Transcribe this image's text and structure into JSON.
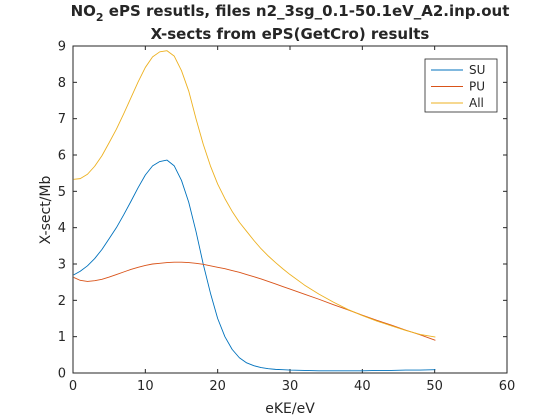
{
  "chart_data": {
    "type": "line",
    "title_main": "NO",
    "title_sub": "2",
    "title_rest": " ePS resutls, files n2_3sg_0.1-50.1eV_A2.inp.out",
    "subtitle": "X-sects from ePS(GetCro) results",
    "xlabel": "eKE/eV",
    "ylabel": "X-sect/Mb",
    "xlim": [
      0,
      60
    ],
    "ylim": [
      0,
      9
    ],
    "xticks": [
      0,
      10,
      20,
      30,
      40,
      50,
      60
    ],
    "yticks": [
      0,
      1,
      2,
      3,
      4,
      5,
      6,
      7,
      8,
      9
    ],
    "grid": false,
    "legend_position": "top-right",
    "x": [
      0.1,
      1,
      2,
      3,
      4,
      5,
      6,
      7,
      8,
      9,
      10,
      11,
      12,
      13,
      14,
      15,
      16,
      17,
      18,
      19,
      20,
      21,
      22,
      23,
      24,
      25,
      26,
      27,
      28,
      29,
      30,
      32,
      34,
      36,
      38,
      40,
      42,
      44,
      46,
      48,
      50.1
    ],
    "series": [
      {
        "name": "SU",
        "color": "#0072bd",
        "values": [
          2.7,
          2.8,
          2.95,
          3.15,
          3.4,
          3.7,
          4.0,
          4.35,
          4.72,
          5.1,
          5.45,
          5.7,
          5.82,
          5.86,
          5.7,
          5.3,
          4.7,
          3.9,
          3.0,
          2.2,
          1.5,
          1.0,
          0.65,
          0.42,
          0.28,
          0.2,
          0.15,
          0.12,
          0.1,
          0.09,
          0.08,
          0.07,
          0.06,
          0.06,
          0.06,
          0.06,
          0.07,
          0.07,
          0.08,
          0.08,
          0.09
        ]
      },
      {
        "name": "PU",
        "color": "#d95319",
        "values": [
          2.63,
          2.55,
          2.52,
          2.54,
          2.58,
          2.64,
          2.71,
          2.78,
          2.85,
          2.91,
          2.96,
          3.0,
          3.02,
          3.04,
          3.05,
          3.05,
          3.04,
          3.02,
          2.99,
          2.95,
          2.91,
          2.87,
          2.82,
          2.77,
          2.71,
          2.65,
          2.59,
          2.52,
          2.45,
          2.38,
          2.31,
          2.17,
          2.03,
          1.88,
          1.74,
          1.59,
          1.45,
          1.32,
          1.18,
          1.05,
          0.9
        ]
      },
      {
        "name": "All",
        "color": "#edb120",
        "values": [
          5.33,
          5.35,
          5.47,
          5.69,
          5.98,
          6.34,
          6.71,
          7.13,
          7.57,
          8.01,
          8.41,
          8.7,
          8.84,
          8.87,
          8.72,
          8.32,
          7.76,
          7.0,
          6.3,
          5.7,
          5.2,
          4.8,
          4.45,
          4.15,
          3.9,
          3.65,
          3.42,
          3.22,
          3.04,
          2.87,
          2.71,
          2.42,
          2.17,
          1.95,
          1.75,
          1.58,
          1.43,
          1.3,
          1.17,
          1.06,
          0.99
        ]
      }
    ]
  }
}
